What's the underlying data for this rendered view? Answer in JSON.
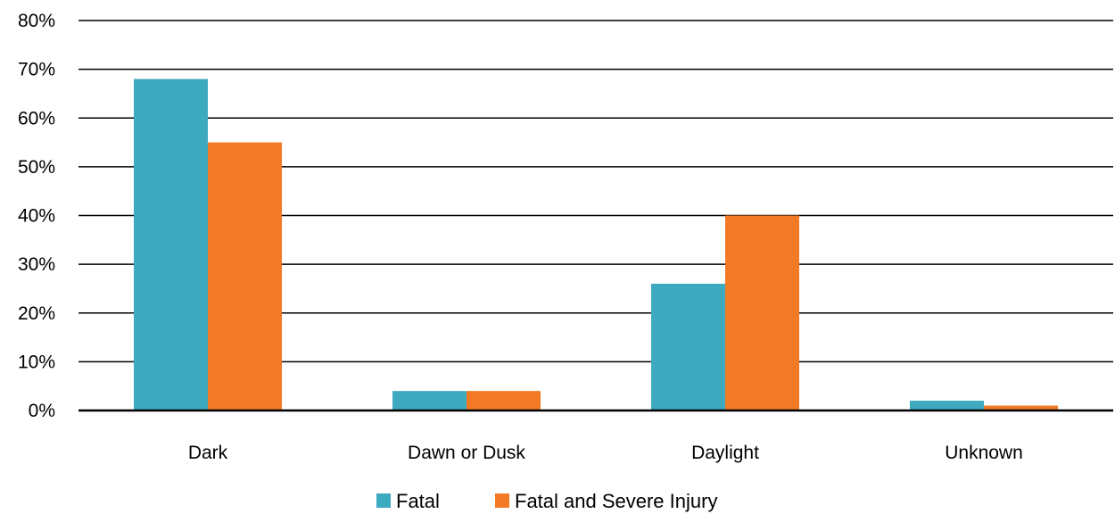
{
  "chart_data": {
    "type": "bar",
    "title": "",
    "xlabel": "",
    "ylabel": "",
    "categories": [
      "Dark",
      "Dawn or Dusk",
      "Daylight",
      "Unknown"
    ],
    "series": [
      {
        "name": "Fatal",
        "color": "#3DAABF",
        "values": [
          68,
          4,
          26,
          2
        ]
      },
      {
        "name": "Fatal and Severe Injury",
        "color": "#F27A27",
        "values": [
          55,
          4,
          40,
          1
        ]
      }
    ],
    "ylim": [
      0,
      80
    ],
    "yticks": [
      0,
      10,
      20,
      30,
      40,
      50,
      60,
      70,
      80
    ],
    "ytick_labels": [
      "0%",
      "10%",
      "20%",
      "30%",
      "40%",
      "50%",
      "60%",
      "70%",
      "80%"
    ],
    "grid": true,
    "legend_position": "bottom"
  }
}
